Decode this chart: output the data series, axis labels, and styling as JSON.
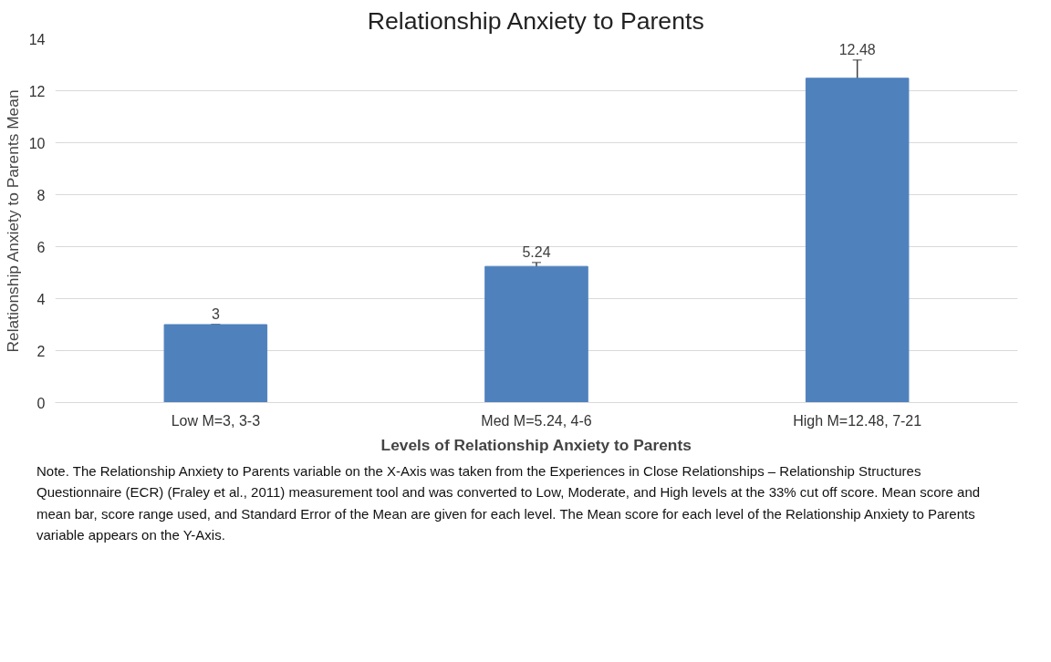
{
  "chart_data": {
    "type": "bar",
    "title": "Relationship Anxiety to Parents",
    "xlabel": "Levels of Relationship Anxiety to Parents",
    "ylabel": "Relationship Anxiety to Parents Mean",
    "categories": [
      "Low M=3, 3-3",
      "Med M=5.24, 4-6",
      "High M=12.48, 7-21"
    ],
    "values": [
      3,
      5.24,
      12.48
    ],
    "errors": [
      0,
      0.15,
      0.7
    ],
    "color": "#4f81bd",
    "ylim": [
      0,
      14
    ],
    "yticks": [
      0,
      2,
      4,
      6,
      8,
      10,
      12,
      14
    ],
    "grid": "y",
    "data_labels": true,
    "annotations": [
      "Note. The Relationship Anxiety to Parents variable on the X-Axis was taken from the Experiences in Close Relationships – Relationship Structures Questionnaire (ECR) (Fraley et al., 2011) measurement tool and was converted to Low, Moderate, and High levels at the 33% cut off score. Mean score and mean bar, score range used, and Standard Error of the Mean are given for each level. The Mean score for each level of the Relationship Anxiety to Parents variable appears on the Y-Axis."
    ]
  }
}
